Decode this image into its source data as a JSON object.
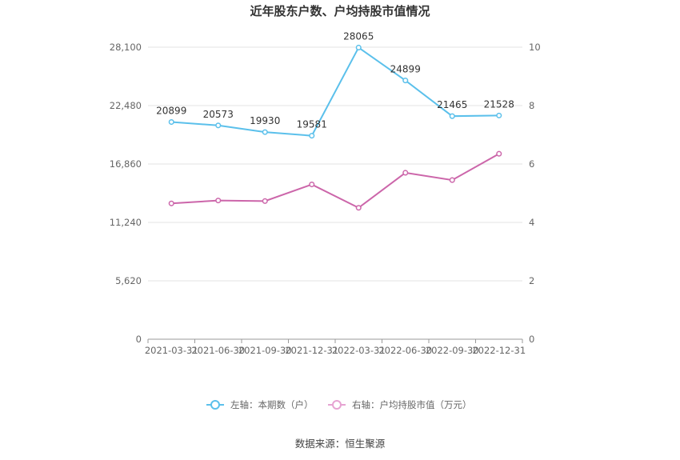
{
  "chart_data": {
    "type": "line",
    "title": "近年股东户数、户均持股市值情况",
    "categories": [
      "2021-03-31",
      "2021-06-30",
      "2021-09-30",
      "2021-12-31",
      "2022-03-31",
      "2022-06-30",
      "2022-09-30",
      "2022-12-31"
    ],
    "left_axis": {
      "ylim": [
        0,
        28100
      ],
      "ticks": [
        "0",
        "5,620",
        "11,240",
        "16,860",
        "22,480",
        "28,100"
      ],
      "tick_values": [
        0,
        5620,
        11240,
        16860,
        22480,
        28100
      ]
    },
    "right_axis": {
      "ylim": [
        0,
        10
      ],
      "ticks": [
        "0",
        "2",
        "4",
        "6",
        "8",
        "10"
      ],
      "tick_values": [
        0,
        2,
        4,
        6,
        8,
        10
      ]
    },
    "series": [
      {
        "name": "左轴：本期数（户）",
        "axis": "left",
        "color": "#5bc0eb",
        "values": [
          20899,
          20573,
          19930,
          19581,
          28065,
          24899,
          21465,
          21528
        ],
        "labels": [
          "20899",
          "20573",
          "19930",
          "19581",
          "28065",
          "24899",
          "21465",
          "21528"
        ]
      },
      {
        "name": "右轴：户均持股市值（万元）",
        "axis": "right",
        "color": "#cc66aa",
        "values": [
          4.65,
          4.75,
          4.73,
          5.3,
          4.5,
          5.7,
          5.45,
          6.35
        ]
      }
    ],
    "grid": true,
    "legend_position": "bottom"
  },
  "source": "数据来源：恒生聚源"
}
